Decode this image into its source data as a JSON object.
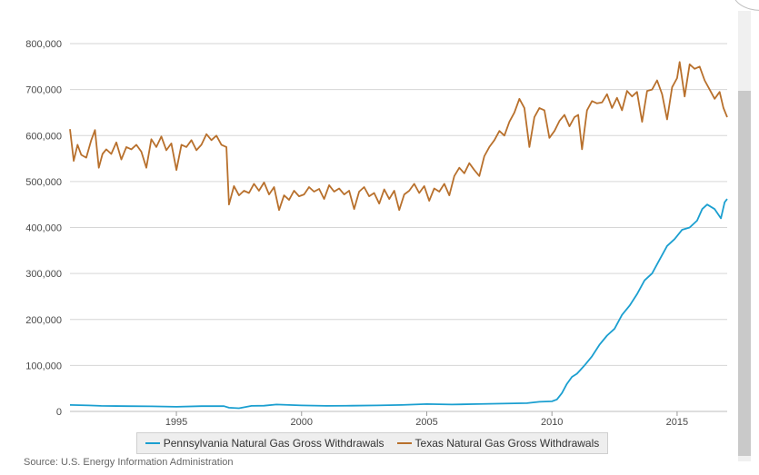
{
  "chart_data": {
    "type": "line",
    "title": "",
    "xlabel": "",
    "ylabel": "",
    "xlim": [
      1990.75,
      2017.0
    ],
    "ylim": [
      0,
      800000
    ],
    "x_ticks": [
      1995,
      2000,
      2005,
      2010,
      2015
    ],
    "y_ticks": [
      0,
      100000,
      200000,
      300000,
      400000,
      500000,
      600000,
      700000,
      800000
    ],
    "y_tick_labels": [
      "0",
      "100,000",
      "200,000",
      "300,000",
      "400,000",
      "500,000",
      "600,000",
      "700,000",
      "800,000"
    ],
    "grid": "horizontal",
    "legend_position": "bottom",
    "series": [
      {
        "name": "Pennsylvania Natural Gas Gross Withdrawals",
        "color": "#1b9fd0",
        "x": [
          1990.75,
          1991.5,
          1992.0,
          1993.0,
          1994.0,
          1995.0,
          1996.0,
          1996.9,
          1997.1,
          1997.5,
          1998.0,
          1998.5,
          1999.0,
          2000.0,
          2001.0,
          2002.0,
          2003.0,
          2004.0,
          2005.0,
          2006.0,
          2007.0,
          2008.0,
          2009.0,
          2009.5,
          2010.0,
          2010.2,
          2010.4,
          2010.6,
          2010.8,
          2011.0,
          2011.3,
          2011.6,
          2011.9,
          2012.2,
          2012.5,
          2012.8,
          2013.1,
          2013.4,
          2013.7,
          2014.0,
          2014.3,
          2014.6,
          2014.9,
          2015.2,
          2015.5,
          2015.8,
          2016.0,
          2016.2,
          2016.5,
          2016.75,
          2016.9,
          2017.0
        ],
        "values": [
          14000,
          13000,
          12000,
          11500,
          11000,
          10000,
          11500,
          11500,
          8000,
          7000,
          12000,
          12500,
          15000,
          13000,
          12000,
          12500,
          13000,
          14000,
          16000,
          15000,
          16000,
          17000,
          18000,
          21000,
          22000,
          26000,
          40000,
          60000,
          75000,
          82000,
          100000,
          120000,
          145000,
          165000,
          180000,
          210000,
          230000,
          255000,
          285000,
          300000,
          330000,
          360000,
          375000,
          395000,
          400000,
          415000,
          440000,
          450000,
          440000,
          420000,
          455000,
          462000
        ]
      },
      {
        "name": "Texas Natural Gas Gross Withdrawals",
        "color": "#b8702c",
        "x": [
          1990.75,
          1990.9,
          1991.05,
          1991.2,
          1991.4,
          1991.6,
          1991.75,
          1991.9,
          1992.05,
          1992.2,
          1992.4,
          1992.6,
          1992.8,
          1993.0,
          1993.2,
          1993.4,
          1993.6,
          1993.8,
          1994.0,
          1994.2,
          1994.4,
          1994.6,
          1994.8,
          1995.0,
          1995.2,
          1995.4,
          1995.6,
          1995.8,
          1996.0,
          1996.2,
          1996.4,
          1996.6,
          1996.8,
          1997.0,
          1997.1,
          1997.3,
          1997.5,
          1997.7,
          1997.9,
          1998.1,
          1998.3,
          1998.5,
          1998.7,
          1998.9,
          1999.1,
          1999.3,
          1999.5,
          1999.7,
          1999.9,
          2000.1,
          2000.3,
          2000.5,
          2000.7,
          2000.9,
          2001.1,
          2001.3,
          2001.5,
          2001.7,
          2001.9,
          2002.1,
          2002.3,
          2002.5,
          2002.7,
          2002.9,
          2003.1,
          2003.3,
          2003.5,
          2003.7,
          2003.9,
          2004.1,
          2004.3,
          2004.5,
          2004.7,
          2004.9,
          2005.1,
          2005.3,
          2005.5,
          2005.7,
          2005.9,
          2006.1,
          2006.3,
          2006.5,
          2006.7,
          2006.9,
          2007.1,
          2007.3,
          2007.5,
          2007.7,
          2007.9,
          2008.1,
          2008.3,
          2008.5,
          2008.7,
          2008.9,
          2009.1,
          2009.3,
          2009.5,
          2009.7,
          2009.9,
          2010.1,
          2010.3,
          2010.5,
          2010.7,
          2010.9,
          2011.05,
          2011.2,
          2011.4,
          2011.6,
          2011.8,
          2012.0,
          2012.2,
          2012.4,
          2012.6,
          2012.8,
          2013.0,
          2013.2,
          2013.4,
          2013.6,
          2013.8,
          2014.0,
          2014.2,
          2014.4,
          2014.6,
          2014.8,
          2015.0,
          2015.1,
          2015.3,
          2015.5,
          2015.7,
          2015.9,
          2016.1,
          2016.3,
          2016.5,
          2016.7,
          2016.85,
          2017.0
        ],
        "values": [
          614000,
          545000,
          580000,
          558000,
          552000,
          590000,
          612000,
          530000,
          560000,
          570000,
          560000,
          585000,
          548000,
          575000,
          570000,
          580000,
          565000,
          530000,
          592000,
          575000,
          598000,
          568000,
          583000,
          525000,
          580000,
          575000,
          590000,
          568000,
          580000,
          603000,
          590000,
          600000,
          580000,
          575000,
          450000,
          490000,
          470000,
          480000,
          475000,
          495000,
          480000,
          498000,
          472000,
          488000,
          438000,
          470000,
          460000,
          480000,
          468000,
          472000,
          488000,
          478000,
          484000,
          462000,
          492000,
          478000,
          485000,
          472000,
          480000,
          440000,
          478000,
          488000,
          468000,
          475000,
          452000,
          483000,
          462000,
          480000,
          438000,
          472000,
          480000,
          495000,
          475000,
          490000,
          458000,
          485000,
          478000,
          495000,
          470000,
          512000,
          530000,
          518000,
          540000,
          525000,
          512000,
          555000,
          575000,
          590000,
          610000,
          600000,
          630000,
          650000,
          680000,
          660000,
          575000,
          640000,
          660000,
          655000,
          595000,
          610000,
          632000,
          645000,
          620000,
          640000,
          645000,
          570000,
          655000,
          675000,
          670000,
          672000,
          690000,
          660000,
          682000,
          655000,
          697000,
          685000,
          695000,
          630000,
          697000,
          700000,
          720000,
          690000,
          635000,
          705000,
          725000,
          760000,
          685000,
          755000,
          745000,
          750000,
          720000,
          700000,
          680000,
          695000,
          660000,
          640000
        ]
      }
    ]
  },
  "legend": {
    "pa_label": "Pennsylvania Natural Gas Gross Withdrawals",
    "tx_label": "Texas Natural Gas Gross Withdrawals"
  },
  "source_text": "Source: U.S. Energy Information Administration"
}
